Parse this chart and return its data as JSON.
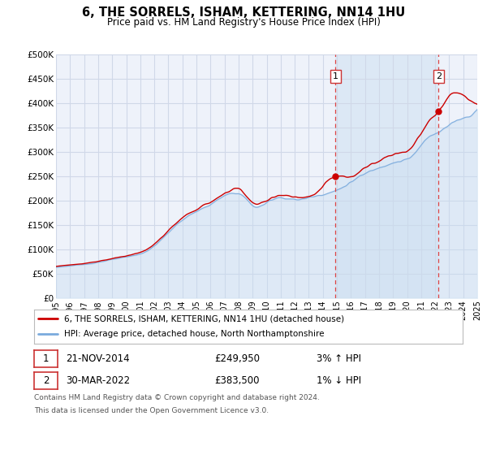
{
  "title": "6, THE SORRELS, ISHAM, KETTERING, NN14 1HU",
  "subtitle": "Price paid vs. HM Land Registry's House Price Index (HPI)",
  "legend_line1": "6, THE SORRELS, ISHAM, KETTERING, NN14 1HU (detached house)",
  "legend_line2": "HPI: Average price, detached house, North Northamptonshire",
  "table_row1": [
    "1",
    "21-NOV-2014",
    "£249,950",
    "3% ↑ HPI"
  ],
  "table_row2": [
    "2",
    "30-MAR-2022",
    "£383,500",
    "1% ↓ HPI"
  ],
  "footnote1": "Contains HM Land Registry data © Crown copyright and database right 2024.",
  "footnote2": "This data is licensed under the Open Government Licence v3.0.",
  "sale1_year": 2014.9,
  "sale1_value": 249950,
  "sale2_year": 2022.25,
  "sale2_value": 383500,
  "plot_bg": "#eef2fa",
  "highlight_bg": "#dce8f5",
  "grid_color": "#d0d8e8",
  "hpi_color": "#7aaadd",
  "hpi_fill_color": "#c8ddf0",
  "price_color": "#cc0000",
  "dashed_line_color": "#dd4444",
  "ylim": [
    0,
    500000
  ],
  "xlim_start": 1995,
  "xlim_end": 2025,
  "ytick_values": [
    0,
    50000,
    100000,
    150000,
    200000,
    250000,
    300000,
    350000,
    400000,
    450000,
    500000
  ],
  "ytick_labels": [
    "£0",
    "£50K",
    "£100K",
    "£150K",
    "£200K",
    "£250K",
    "£300K",
    "£350K",
    "£400K",
    "£450K",
    "£500K"
  ]
}
